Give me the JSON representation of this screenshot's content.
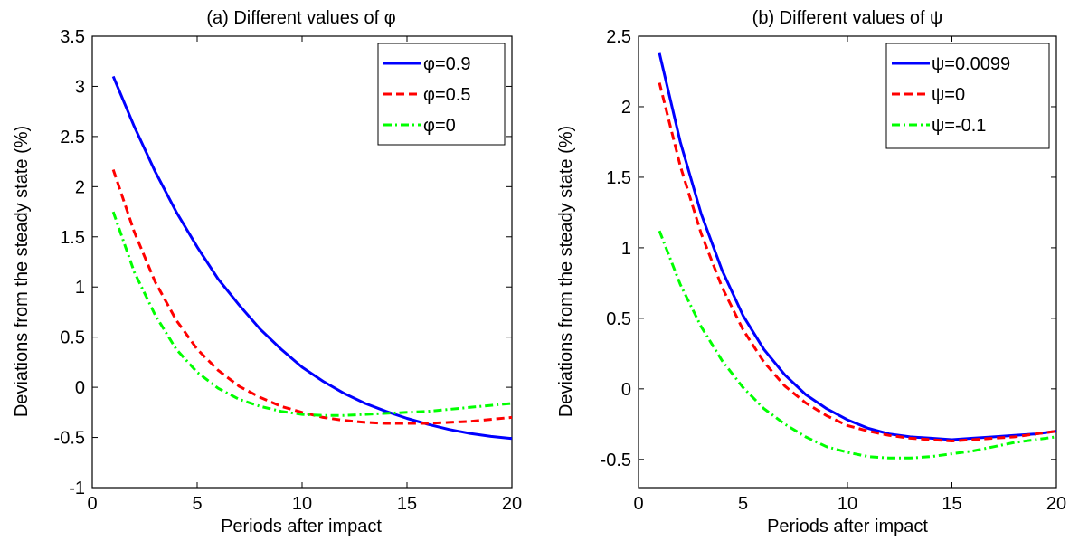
{
  "chart_data": [
    {
      "type": "line",
      "title": "(a) Different values of  φ",
      "xlabel": "Periods after impact",
      "ylabel": "Deviations from the steady state (%)",
      "xlim": [
        0,
        20
      ],
      "ylim": [
        -1,
        3.5
      ],
      "xticks": [
        "0",
        "5",
        "10",
        "15",
        "20"
      ],
      "yticks": [
        "-1",
        "-0.5",
        "0",
        "0.5",
        "1",
        "1.5",
        "2",
        "2.5",
        "3",
        "3.5"
      ],
      "grid": false,
      "legend_position": "top-right",
      "x": [
        1,
        2,
        3,
        4,
        5,
        6,
        7,
        8,
        9,
        10,
        11,
        12,
        13,
        14,
        15,
        16,
        17,
        18,
        19,
        20
      ],
      "series": [
        {
          "name": "φ=0.9",
          "color": "#0000ff",
          "dash": "solid",
          "values": [
            3.1,
            2.6,
            2.15,
            1.75,
            1.4,
            1.08,
            0.82,
            0.58,
            0.38,
            0.2,
            0.06,
            -0.06,
            -0.16,
            -0.24,
            -0.31,
            -0.37,
            -0.42,
            -0.46,
            -0.49,
            -0.51
          ]
        },
        {
          "name": "φ=0.5",
          "color": "#ff0000",
          "dash": "dashed",
          "values": [
            2.17,
            1.55,
            1.05,
            0.67,
            0.38,
            0.17,
            0.01,
            -0.1,
            -0.19,
            -0.25,
            -0.3,
            -0.33,
            -0.35,
            -0.36,
            -0.36,
            -0.36,
            -0.35,
            -0.34,
            -0.32,
            -0.3
          ]
        },
        {
          "name": "φ=0",
          "color": "#00ff00",
          "dash": "dashdot",
          "values": [
            1.75,
            1.15,
            0.72,
            0.38,
            0.15,
            -0.01,
            -0.12,
            -0.19,
            -0.24,
            -0.27,
            -0.28,
            -0.28,
            -0.27,
            -0.26,
            -0.25,
            -0.24,
            -0.22,
            -0.2,
            -0.18,
            -0.16
          ]
        }
      ]
    },
    {
      "type": "line",
      "title": "(b) Different values of  ψ",
      "xlabel": "Periods after impact",
      "ylabel": "Deviations from the steady state (%)",
      "xlim": [
        0,
        20
      ],
      "ylim": [
        -0.7,
        2.5
      ],
      "xticks": [
        "0",
        "5",
        "10",
        "15",
        "20"
      ],
      "yticks": [
        "-0.5",
        "0",
        "0.5",
        "1",
        "1.5",
        "2",
        "2.5"
      ],
      "grid": false,
      "legend_position": "top-right",
      "x": [
        1,
        2,
        3,
        4,
        5,
        6,
        7,
        8,
        9,
        10,
        11,
        12,
        13,
        14,
        15,
        16,
        17,
        18,
        19,
        20
      ],
      "series": [
        {
          "name": "ψ=0.0099",
          "color": "#0000ff",
          "dash": "solid",
          "values": [
            2.38,
            1.75,
            1.24,
            0.84,
            0.52,
            0.28,
            0.1,
            -0.04,
            -0.14,
            -0.22,
            -0.28,
            -0.32,
            -0.34,
            -0.35,
            -0.36,
            -0.35,
            -0.34,
            -0.33,
            -0.32,
            -0.3
          ]
        },
        {
          "name": "ψ=0",
          "color": "#ff0000",
          "dash": "dashed",
          "values": [
            2.17,
            1.58,
            1.1,
            0.72,
            0.42,
            0.19,
            0.02,
            -0.1,
            -0.19,
            -0.26,
            -0.3,
            -0.33,
            -0.35,
            -0.36,
            -0.37,
            -0.36,
            -0.35,
            -0.34,
            -0.32,
            -0.3
          ]
        },
        {
          "name": "ψ=-0.1",
          "color": "#00ff00",
          "dash": "dashdot",
          "values": [
            1.12,
            0.74,
            0.44,
            0.2,
            0.01,
            -0.14,
            -0.25,
            -0.34,
            -0.41,
            -0.45,
            -0.48,
            -0.49,
            -0.49,
            -0.48,
            -0.46,
            -0.44,
            -0.41,
            -0.38,
            -0.36,
            -0.34
          ]
        }
      ]
    }
  ]
}
